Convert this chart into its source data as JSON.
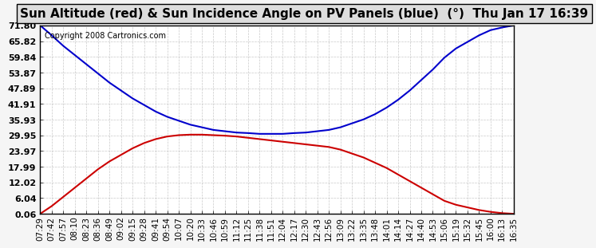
{
  "title": "Sun Altitude (red) & Sun Incidence Angle on PV Panels (blue)  (°)  Thu Jan 17 16:39",
  "copyright": "Copyright 2008 Cartronics.com",
  "yticks": [
    0.06,
    6.04,
    12.02,
    17.99,
    23.97,
    29.95,
    35.93,
    41.91,
    47.89,
    53.87,
    59.84,
    65.82,
    71.8
  ],
  "ymin": 0.06,
  "ymax": 71.8,
  "x_labels": [
    "07:29",
    "07:42",
    "07:57",
    "08:10",
    "08:23",
    "08:36",
    "08:49",
    "09:02",
    "09:15",
    "09:28",
    "09:41",
    "09:54",
    "10:07",
    "10:20",
    "10:33",
    "10:46",
    "10:59",
    "11:12",
    "11:25",
    "11:38",
    "11:51",
    "12:04",
    "12:17",
    "12:30",
    "12:43",
    "12:56",
    "13:09",
    "13:22",
    "13:35",
    "13:48",
    "14:01",
    "14:14",
    "14:27",
    "14:40",
    "14:53",
    "15:06",
    "15:19",
    "15:32",
    "15:45",
    "16:00",
    "16:13",
    "16:35"
  ],
  "red_values": [
    0.06,
    3.0,
    6.5,
    10.0,
    13.5,
    17.0,
    20.0,
    22.5,
    25.0,
    27.0,
    28.5,
    29.5,
    30.0,
    30.2,
    30.2,
    30.0,
    29.8,
    29.5,
    29.0,
    28.5,
    28.0,
    27.5,
    27.0,
    26.5,
    26.0,
    25.5,
    24.5,
    23.0,
    21.5,
    19.5,
    17.5,
    15.0,
    12.5,
    10.0,
    7.5,
    5.0,
    3.5,
    2.5,
    1.5,
    0.8,
    0.3,
    0.06
  ],
  "blue_values": [
    71.8,
    68.0,
    64.0,
    60.5,
    57.0,
    53.5,
    50.0,
    47.0,
    44.0,
    41.5,
    39.0,
    37.0,
    35.5,
    34.0,
    33.0,
    32.0,
    31.5,
    31.0,
    30.8,
    30.5,
    30.5,
    30.5,
    30.8,
    31.0,
    31.5,
    32.0,
    33.0,
    34.5,
    36.0,
    38.0,
    40.5,
    43.5,
    47.0,
    51.0,
    55.0,
    59.5,
    63.0,
    65.5,
    68.0,
    70.0,
    71.0,
    71.8
  ],
  "bg_color": "#f5f5f5",
  "plot_bg": "#ffffff",
  "red_color": "#cc0000",
  "blue_color": "#0000cc",
  "grid_color": "#bbbbbb",
  "title_bg": "#dddddd",
  "font_size_title": 11,
  "font_size_ticks": 7.5,
  "font_size_yticks": 8,
  "font_size_copyright": 7
}
